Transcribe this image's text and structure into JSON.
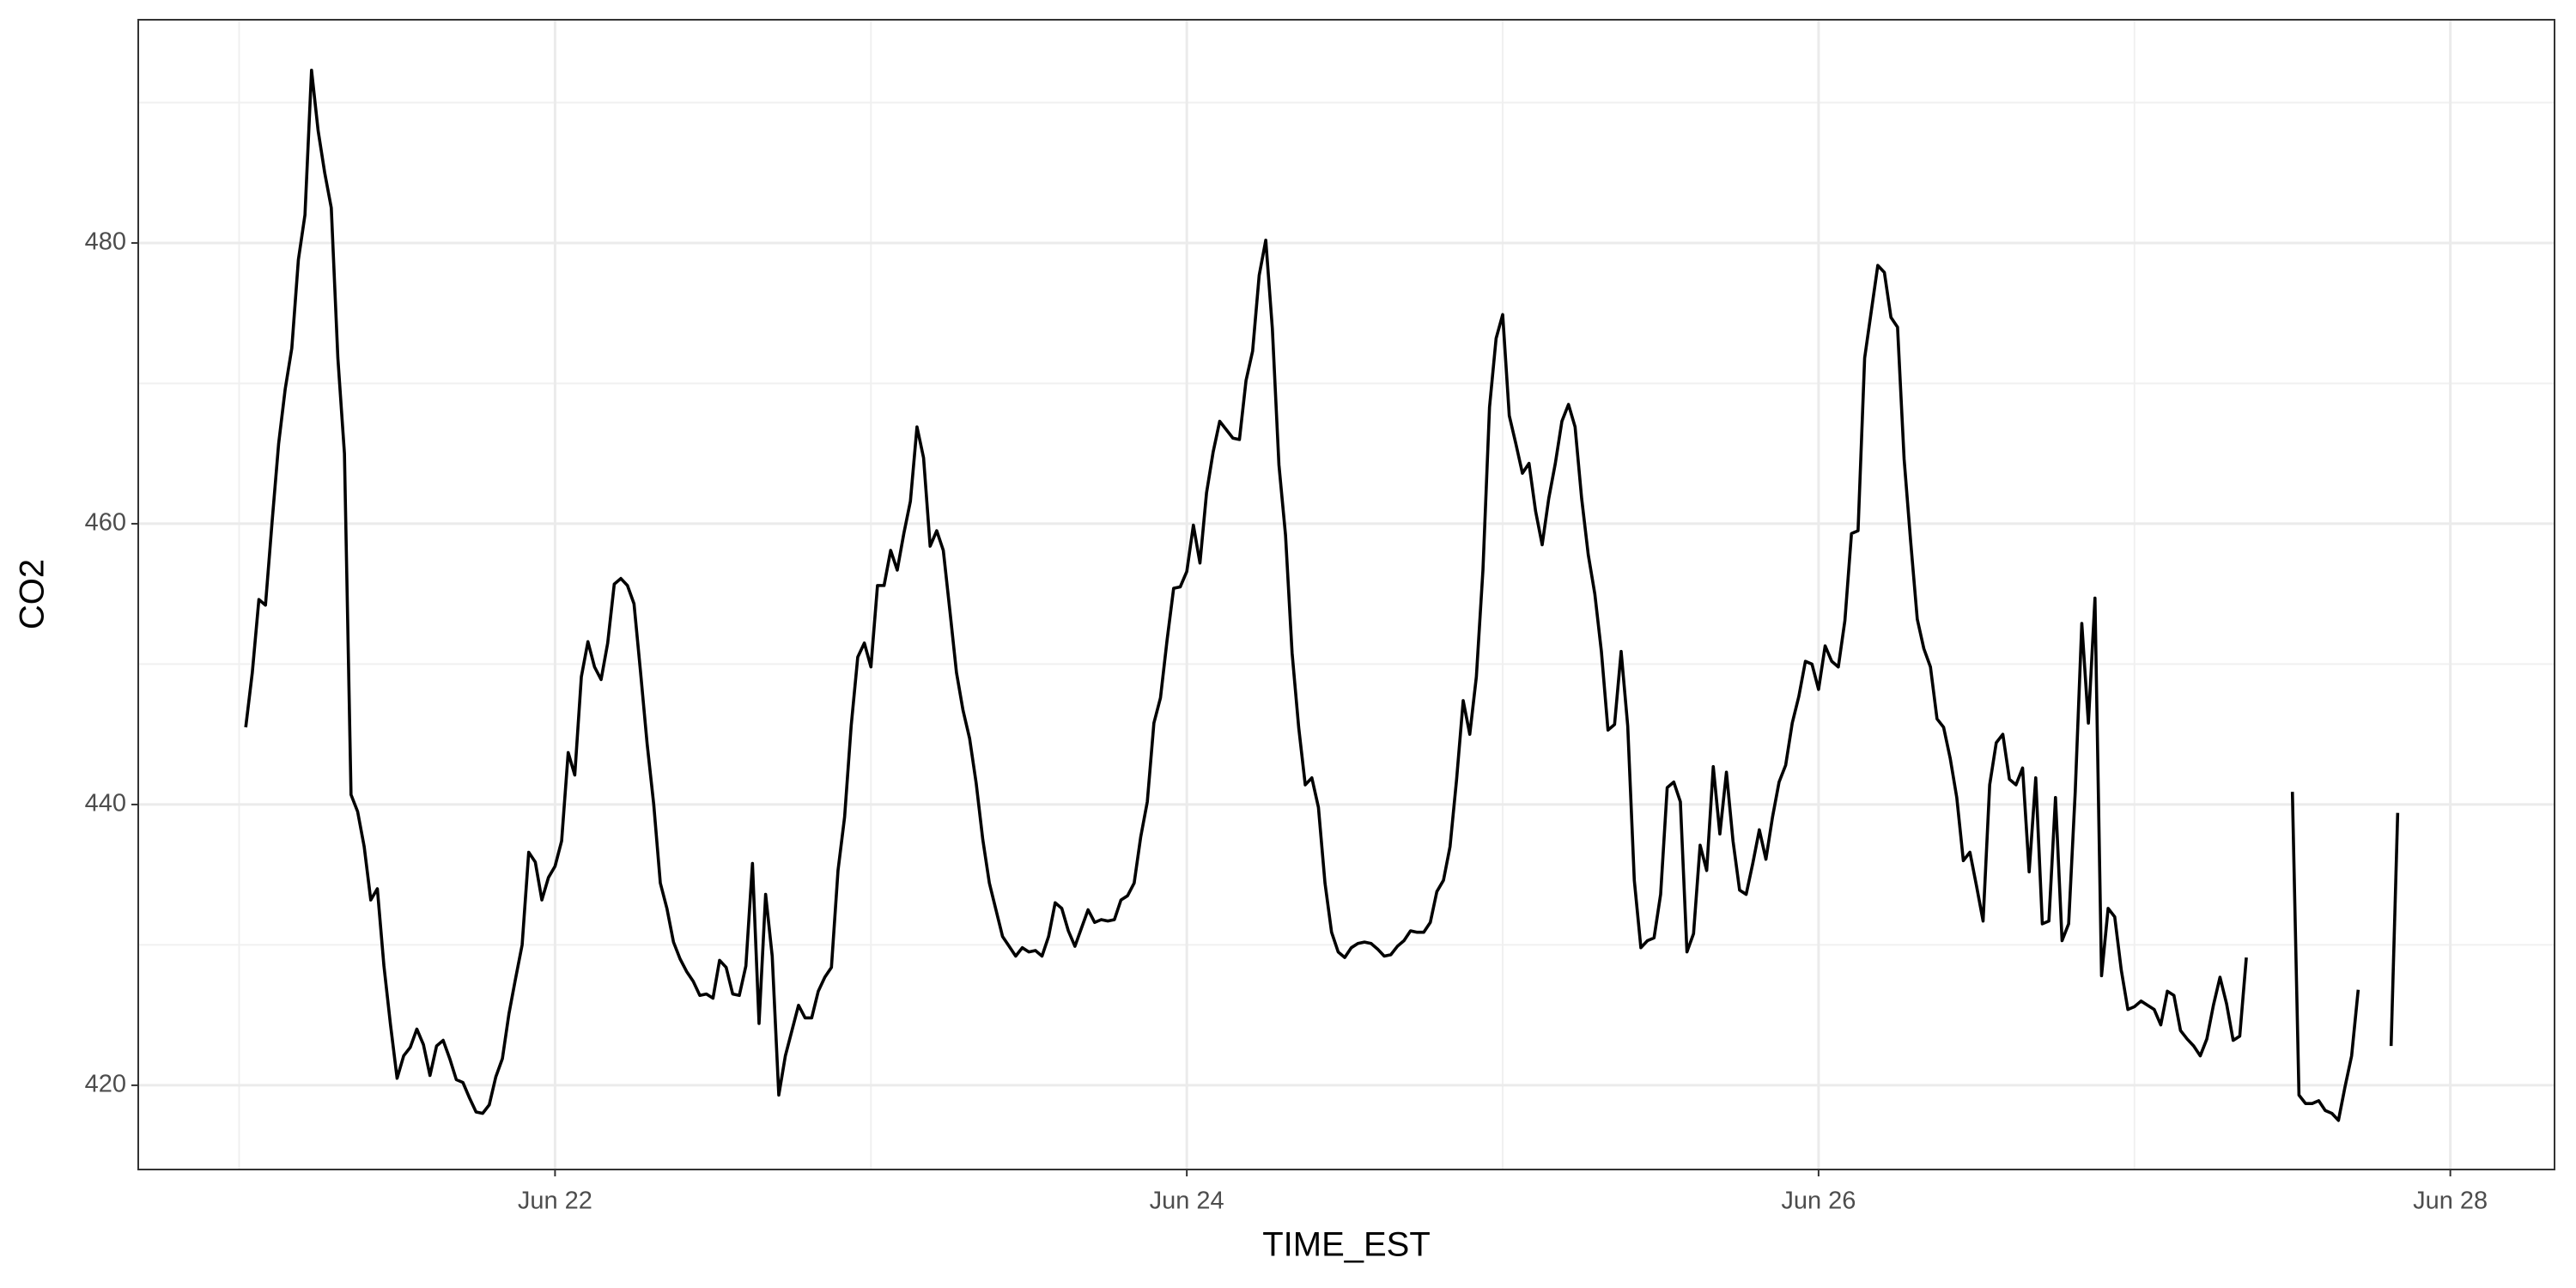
{
  "chart_data": {
    "type": "line",
    "x_label": "TIME_EST",
    "y_label": "CO2",
    "x": [
      "06-21 00:30",
      "06-21 01:00",
      "06-21 01:30",
      "06-21 02:00",
      "06-21 02:30",
      "06-21 03:00",
      "06-21 03:30",
      "06-21 04:00",
      "06-21 04:30",
      "06-21 05:00",
      "06-21 05:30",
      "06-21 06:00",
      "06-21 06:30",
      "06-21 07:00",
      "06-21 07:30",
      "06-21 08:00",
      "06-21 08:30",
      "06-21 09:00",
      "06-21 09:30",
      "06-21 10:00",
      "06-21 10:30",
      "06-21 11:00",
      "06-21 11:30",
      "06-21 12:00",
      "06-21 12:30",
      "06-21 13:00",
      "06-21 13:30",
      "06-21 14:00",
      "06-21 14:30",
      "06-21 15:00",
      "06-21 15:30",
      "06-21 16:00",
      "06-21 16:30",
      "06-21 17:00",
      "06-21 17:30",
      "06-21 18:00",
      "06-21 18:30",
      "06-21 19:00",
      "06-21 19:30",
      "06-21 20:00",
      "06-21 20:30",
      "06-21 21:00",
      "06-21 21:30",
      "06-21 22:00",
      "06-21 22:30",
      "06-21 23:00",
      "06-21 23:30",
      "06-22 00:00",
      "06-22 00:30",
      "06-22 01:00",
      "06-22 01:30",
      "06-22 02:00",
      "06-22 02:30",
      "06-22 03:00",
      "06-22 03:30",
      "06-22 04:00",
      "06-22 04:30",
      "06-22 05:00",
      "06-22 05:30",
      "06-22 06:00",
      "06-22 06:30",
      "06-22 07:00",
      "06-22 07:30",
      "06-22 08:00",
      "06-22 08:30",
      "06-22 09:00",
      "06-22 09:30",
      "06-22 10:00",
      "06-22 10:30",
      "06-22 11:00",
      "06-22 11:30",
      "06-22 12:00",
      "06-22 12:30",
      "06-22 13:00",
      "06-22 13:30",
      "06-22 14:00",
      "06-22 14:30",
      "06-22 15:00",
      "06-22 15:30",
      "06-22 16:00",
      "06-22 16:30",
      "06-22 17:00",
      "06-22 17:30",
      "06-22 18:00",
      "06-22 18:30",
      "06-22 19:00",
      "06-22 19:30",
      "06-22 20:00",
      "06-22 20:30",
      "06-22 21:00",
      "06-22 21:30",
      "06-22 22:00",
      "06-22 22:30",
      "06-22 23:00",
      "06-22 23:30",
      "06-23 00:00",
      "06-23 00:30",
      "06-23 01:00",
      "06-23 01:30",
      "06-23 02:00",
      "06-23 02:30",
      "06-23 03:00",
      "06-23 03:30",
      "06-23 04:00",
      "06-23 04:30",
      "06-23 05:00",
      "06-23 05:30",
      "06-23 06:00",
      "06-23 06:30",
      "06-23 07:00",
      "06-23 07:30",
      "06-23 08:00",
      "06-23 08:30",
      "06-23 09:00",
      "06-23 09:30",
      "06-23 10:00",
      "06-23 10:30",
      "06-23 11:00",
      "06-23 11:30",
      "06-23 12:00",
      "06-23 12:30",
      "06-23 13:00",
      "06-23 13:30",
      "06-23 14:00",
      "06-23 14:30",
      "06-23 15:00",
      "06-23 15:30",
      "06-23 16:00",
      "06-23 16:30",
      "06-23 17:00",
      "06-23 17:30",
      "06-23 18:00",
      "06-23 18:30",
      "06-23 19:00",
      "06-23 19:30",
      "06-23 20:00",
      "06-23 20:30",
      "06-23 21:00",
      "06-23 21:30",
      "06-23 22:00",
      "06-23 22:30",
      "06-23 23:00",
      "06-23 23:30",
      "06-24 00:00",
      "06-24 00:30",
      "06-24 01:00",
      "06-24 01:30",
      "06-24 02:00",
      "06-24 02:30",
      "06-24 03:00",
      "06-24 03:30",
      "06-24 04:00",
      "06-24 04:30",
      "06-24 05:00",
      "06-24 05:30",
      "06-24 06:00",
      "06-24 06:30",
      "06-24 07:00",
      "06-24 07:30",
      "06-24 08:00",
      "06-24 08:30",
      "06-24 09:00",
      "06-24 09:30",
      "06-24 10:00",
      "06-24 10:30",
      "06-24 11:00",
      "06-24 11:30",
      "06-24 12:00",
      "06-24 12:30",
      "06-24 13:00",
      "06-24 13:30",
      "06-24 14:00",
      "06-24 14:30",
      "06-24 15:00",
      "06-24 15:30",
      "06-24 16:00",
      "06-24 16:30",
      "06-24 17:00",
      "06-24 17:30",
      "06-24 18:00",
      "06-24 18:30",
      "06-24 19:00",
      "06-24 19:30",
      "06-24 20:00",
      "06-24 20:30",
      "06-24 21:00",
      "06-24 21:30",
      "06-24 22:00",
      "06-24 22:30",
      "06-24 23:00",
      "06-24 23:30",
      "06-25 00:00",
      "06-25 00:30",
      "06-25 01:00",
      "06-25 01:30",
      "06-25 02:00",
      "06-25 02:30",
      "06-25 03:00",
      "06-25 03:30",
      "06-25 04:00",
      "06-25 04:30",
      "06-25 05:00",
      "06-25 05:30",
      "06-25 06:00",
      "06-25 06:30",
      "06-25 07:00",
      "06-25 07:30",
      "06-25 08:00",
      "06-25 08:30",
      "06-25 09:00",
      "06-25 09:30",
      "06-25 10:00",
      "06-25 10:30",
      "06-25 11:00",
      "06-25 11:30",
      "06-25 12:00",
      "06-25 12:30",
      "06-25 13:00",
      "06-25 13:30",
      "06-25 14:00",
      "06-25 14:30",
      "06-25 15:00",
      "06-25 15:30",
      "06-25 16:00",
      "06-25 16:30",
      "06-25 17:00",
      "06-25 17:30",
      "06-25 18:00",
      "06-25 18:30",
      "06-25 19:00",
      "06-25 19:30",
      "06-25 20:00",
      "06-25 20:30",
      "06-25 21:00",
      "06-25 21:30",
      "06-25 22:00",
      "06-25 22:30",
      "06-25 23:00",
      "06-25 23:30",
      "06-26 00:00",
      "06-26 00:30",
      "06-26 01:00",
      "06-26 01:30",
      "06-26 02:00",
      "06-26 02:30",
      "06-26 03:00",
      "06-26 03:30",
      "06-26 04:00",
      "06-26 04:30",
      "06-26 05:00",
      "06-26 05:30",
      "06-26 06:00",
      "06-26 06:30",
      "06-26 07:00",
      "06-26 07:30",
      "06-26 08:00",
      "06-26 08:30",
      "06-26 09:00",
      "06-26 09:30",
      "06-26 10:00",
      "06-26 10:30",
      "06-26 11:00",
      "06-26 11:30",
      "06-26 12:00",
      "06-26 12:30",
      "06-26 13:00",
      "06-26 13:30",
      "06-26 14:00",
      "06-26 14:30",
      "06-26 15:00",
      "06-26 15:30",
      "06-26 16:00",
      "06-26 16:30",
      "06-26 17:00",
      "06-26 17:30",
      "06-26 18:00",
      "06-26 18:30",
      "06-26 19:00",
      "06-26 19:30",
      "06-26 20:00",
      "06-26 20:30",
      "06-26 21:00",
      "06-26 21:30",
      "06-26 22:00",
      "06-26 22:30",
      "06-26 23:00",
      "06-26 23:30",
      "06-27 00:00",
      "06-27 00:30",
      "06-27 01:00",
      "06-27 01:30",
      "06-27 02:00",
      "06-27 02:30",
      "06-27 03:00",
      "06-27 03:30",
      "06-27 04:00",
      "06-27 04:30",
      "06-27 05:00",
      "06-27 05:30",
      "06-27 06:00",
      "06-27 06:30",
      "06-27 07:00",
      "06-27 07:30",
      "06-27 08:00",
      "06-27 08:30",
      "06-27 09:00",
      "06-27 09:30",
      "06-27 10:00",
      "06-27 10:30",
      "06-27 11:00",
      "06-27 11:30",
      "06-27 12:00",
      "06-27 12:30",
      "06-27 13:00",
      "06-27 13:30",
      "06-27 14:00",
      "06-27 14:30",
      "06-27 15:00",
      "06-27 15:30",
      "06-27 16:00",
      "06-27 16:30",
      "06-27 17:00",
      "06-27 17:30",
      "06-27 18:00",
      "06-27 18:30",
      "06-27 19:00",
      "06-27 19:30",
      "06-27 20:00"
    ],
    "series": [
      {
        "color": "#000000",
        "values": [
          445.5,
          449.4,
          454.6,
          454.2,
          460.1,
          465.7,
          469.6,
          472.5,
          478.8,
          482,
          492.3,
          488,
          485,
          482.5,
          471.8,
          465,
          440.7,
          439.5,
          437,
          433.2,
          434,
          428.5,
          424.3,
          420.5,
          422.1,
          422.7,
          424,
          422.9,
          420.7,
          422.8,
          423.2,
          421.9,
          420.4,
          420.2,
          419.1,
          418.1,
          418,
          418.6,
          420.6,
          421.9,
          425.1,
          427.6,
          430,
          436.6,
          435.9,
          433.2,
          434.8,
          435.6,
          437.4,
          443.7,
          442.1,
          449.1,
          451.6,
          449.8,
          448.9,
          451.5,
          455.7,
          456.1,
          455.6,
          454.3,
          449.4,
          444.3,
          440,
          434.4,
          432.6,
          430.2,
          429,
          428.1,
          427.4,
          426.4,
          426.5,
          426.2,
          428.9,
          428.4,
          426.5,
          426.4,
          428.5,
          435.8,
          424.4,
          433.6,
          429.2,
          419.3,
          422.1,
          423.9,
          425.7,
          424.8,
          424.8,
          426.7,
          427.7,
          428.4,
          435.3,
          439.1,
          445.6,
          450.5,
          451.5,
          449.8,
          455.6,
          455.6,
          458.1,
          456.7,
          459.3,
          461.6,
          466.9,
          464.7,
          458.4,
          459.5,
          458.1,
          453.8,
          449.4,
          446.7,
          444.7,
          441.5,
          437.5,
          434.4,
          432.5,
          430.6,
          429.9,
          429.2,
          429.8,
          429.5,
          429.6,
          429.2,
          430.6,
          433,
          432.6,
          431,
          429.9,
          431.2,
          432.5,
          431.6,
          431.8,
          431.7,
          431.8,
          433.2,
          433.5,
          434.4,
          437.7,
          440.2,
          445.8,
          447.6,
          451.7,
          455.4,
          455.5,
          456.6,
          459.9,
          457.2,
          462.2,
          465.1,
          467.3,
          466.7,
          466.1,
          466,
          470.2,
          472.3,
          477.7,
          480.2,
          473.9,
          464.2,
          459.2,
          450.8,
          445.5,
          441.4,
          441.9,
          439.8,
          434.4,
          430.9,
          429.5,
          429.1,
          429.8,
          430.1,
          430.2,
          430.1,
          429.7,
          429.2,
          429.3,
          429.9,
          430.3,
          431,
          430.9,
          430.9,
          431.6,
          433.8,
          434.6,
          437,
          441.8,
          447.4,
          445,
          449.1,
          456.7,
          468.3,
          473.2,
          474.9,
          467.7,
          465.7,
          463.6,
          464.3,
          460.9,
          458.5,
          461.8,
          464.3,
          467.3,
          468.5,
          466.9,
          461.8,
          457.8,
          455,
          450.9,
          445.3,
          445.7,
          450.9,
          445.6,
          434.6,
          429.8,
          430.3,
          430.5,
          433.6,
          441.2,
          441.6,
          440.2,
          429.5,
          430.8,
          437.1,
          435.3,
          442.7,
          437.9,
          442.3,
          437.4,
          433.9,
          433.6,
          435.8,
          438.2,
          436.1,
          439.1,
          441.6,
          442.8,
          445.8,
          447.7,
          450.2,
          450,
          448.2,
          451.3,
          450.2,
          449.8,
          453.1,
          459.3,
          459.5,
          471.8,
          475.1,
          478.4,
          477.9,
          474.7,
          474,
          464.6,
          458.7,
          453.2,
          451.1,
          449.8,
          446.1,
          445.5,
          443.3,
          440.5,
          436,
          436.6,
          434.2,
          431.7,
          441.4,
          444.4,
          445,
          441.8,
          441.4,
          442.6,
          435.2,
          441.9,
          431.5,
          431.7,
          440.5,
          430.3,
          431.5,
          440.9,
          452.9,
          445.8,
          454.7,
          427.8,
          432.6,
          432,
          428.2,
          425.4,
          425.6,
          426,
          425.7,
          425.4,
          424.3,
          426.7,
          426.4,
          423.9,
          423.3,
          422.8,
          422.1,
          423.3,
          425.7,
          427.7,
          425.8,
          423.2,
          423.5,
          429.1,
          null,
          null,
          null,
          null,
          null,
          null,
          440.9,
          419.3,
          418.7,
          418.7,
          418.9,
          418.2,
          418,
          417.5,
          419.9,
          422.1,
          426.8,
          null,
          null,
          null,
          null,
          422.8,
          439.4
        ]
      }
    ],
    "xlim": [
      "06-20 16:20",
      "06-28 07:55"
    ],
    "xticks": [
      {
        "value": "06-22 00:00",
        "label": "Jun 22"
      },
      {
        "value": "06-24 00:00",
        "label": "Jun 24"
      },
      {
        "value": "06-26 00:00",
        "label": "Jun 26"
      },
      {
        "value": "06-28 00:00",
        "label": "Jun 28"
      }
    ],
    "xminor": [
      "06-21 00:00",
      "06-23 00:00",
      "06-25 00:00",
      "06-27 00:00"
    ],
    "ylim": [
      414,
      495.9
    ],
    "yticks": [
      420,
      440,
      460,
      480
    ],
    "yminor": [
      430,
      450,
      470,
      490
    ],
    "grid": true
  }
}
